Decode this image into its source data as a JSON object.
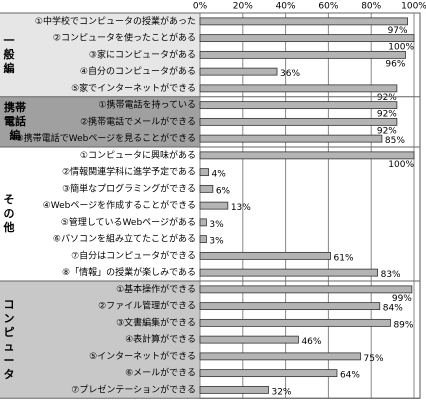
{
  "chart_data": {
    "type": "bar",
    "orientation": "horizontal",
    "color": "#b4b4b4",
    "xlim": [
      0,
      100
    ],
    "xticks": [
      {
        "value": 0,
        "label": "0%"
      },
      {
        "value": 20,
        "label": "20%"
      },
      {
        "value": 40,
        "label": "40%"
      },
      {
        "value": 60,
        "label": "60%"
      },
      {
        "value": 80,
        "label": "80%"
      },
      {
        "value": 100,
        "label": "100%"
      }
    ],
    "grid": true,
    "groups": [
      {
        "name": "一般編",
        "background": "#e6e6e6",
        "categories": [
          "①中学校でコンピュータの授業があった",
          "②コンピュータを使ったことがある",
          "③家にコンピュータがある",
          "④自分のコンピュータがある",
          "⑤家でインターネットができる"
        ],
        "values": [
          97,
          100,
          96,
          36,
          92
        ],
        "value_labels": [
          "97%",
          "100%",
          "96%",
          "36%",
          "92%"
        ]
      },
      {
        "name": "携帯電話編",
        "background": "#a0a0a0",
        "categories": [
          "①携帯電話を持っている",
          "②携帯電話でメールができる",
          "③携帯電話でWebページを見ることができる"
        ],
        "values": [
          92,
          92,
          85
        ],
        "value_labels": [
          "92%",
          "92%",
          "85%"
        ]
      },
      {
        "name": "その他",
        "background": "#ffffff",
        "categories": [
          "①コンピュータに興味がある",
          "②情報関連学科に進学予定である",
          "③簡単なプログラミングができる",
          "④Webページを作成することができる",
          "⑤管理しているWebページがある",
          "⑥パソコンを組み立てたことがある",
          "⑦自分はコンピュータができる",
          "⑧「情報」の授業が楽しみである"
        ],
        "values": [
          100,
          4,
          6,
          13,
          3,
          3,
          61,
          83
        ],
        "value_labels": [
          "100%",
          "4%",
          "6%",
          "13%",
          "3%",
          "3%",
          "61%",
          "83%"
        ]
      },
      {
        "name": "コンピュータ",
        "background": "#c8c8c8",
        "categories": [
          "①基本操作ができる",
          "②ファイル管理ができる",
          "③文書編集ができる",
          "④表計算ができる",
          "⑤インターネットができる",
          "⑥メールができる",
          "⑦プレゼンテーションができる"
        ],
        "values": [
          99,
          84,
          89,
          46,
          75,
          64,
          32
        ],
        "value_labels": [
          "99%",
          "84%",
          "89%",
          "46%",
          "75%",
          "64%",
          "32%"
        ]
      }
    ]
  }
}
